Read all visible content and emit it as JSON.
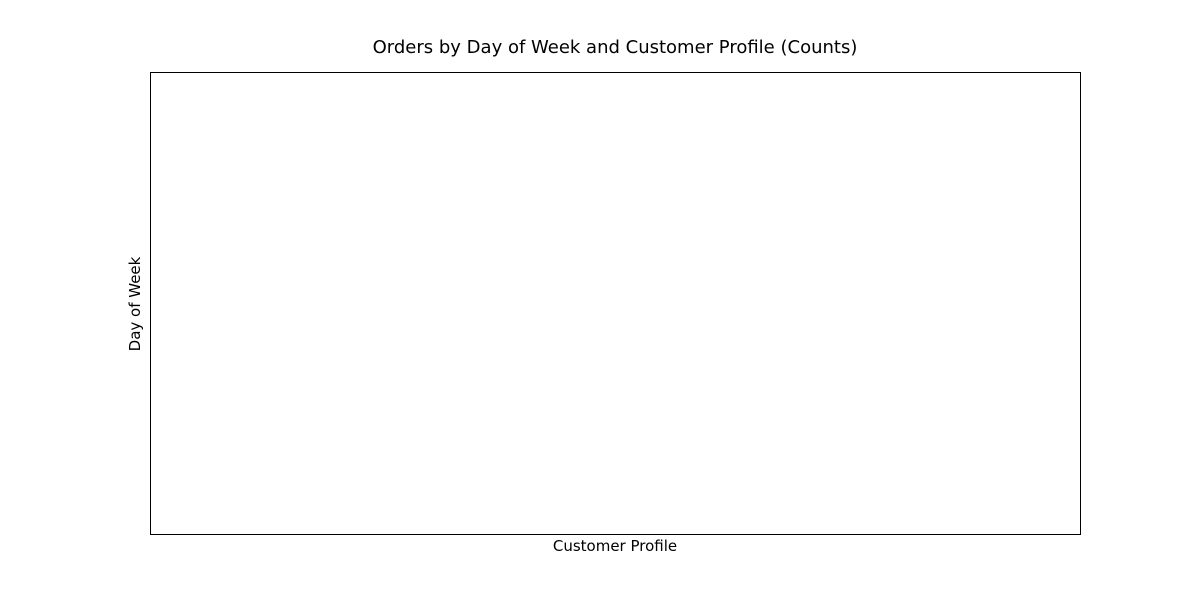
{
  "chart_data": {
    "type": "heatmap",
    "title": "Orders by Day of Week and Customer Profile (Counts)",
    "xlabel": "Customer Profile",
    "ylabel": "Day of Week",
    "x_categories": [],
    "y_categories": [],
    "values": [],
    "grid": false
  }
}
